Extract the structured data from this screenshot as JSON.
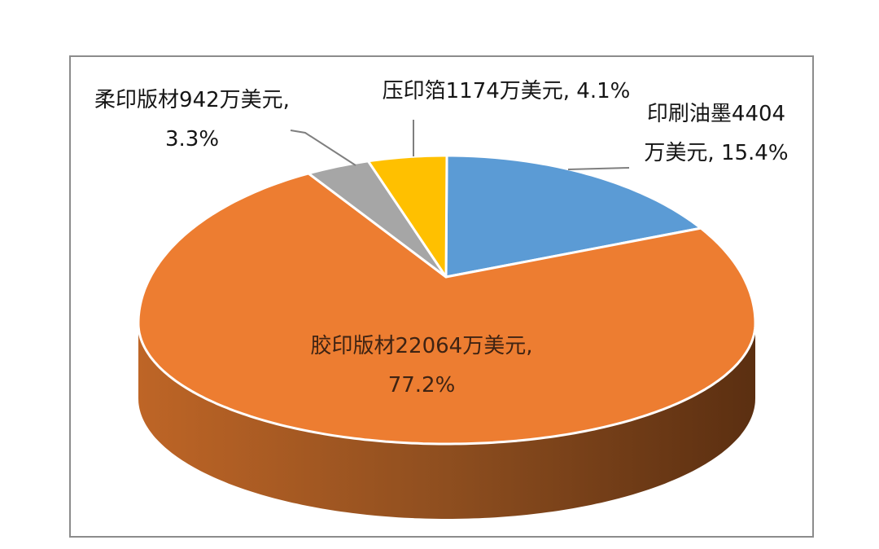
{
  "chart_data": {
    "type": "pie",
    "style": "3d",
    "unit": "万美元",
    "direction": "clockwise",
    "start_angle_deg": 0,
    "slices": [
      {
        "key": "ink",
        "label": "印刷油墨",
        "value": 4404,
        "pct": 15.4,
        "color": "#5B9BD5"
      },
      {
        "key": "offset",
        "label": "胶印版材",
        "value": 22064,
        "pct": 77.2,
        "color": "#ED7D31"
      },
      {
        "key": "flexo",
        "label": "柔印版材",
        "value": 942,
        "pct": 3.3,
        "color": "#A6A6A6"
      },
      {
        "key": "foil",
        "label": "压印箔",
        "value": 1174,
        "pct": 4.1,
        "color": "#FFC000"
      }
    ],
    "labels": {
      "flexo": {
        "line1": "柔印版材942万美元,",
        "line2": "3.3%"
      },
      "foil": {
        "line1": "压印箔1174万美元, 4.1%"
      },
      "ink": {
        "line1": "印刷油墨4404",
        "line2": "万美元, 15.4%"
      },
      "offset": {
        "line1": "胶印版材22064万美元,",
        "line2": "77.2%"
      }
    },
    "colors": {
      "side_gradient": [
        "#BE6526",
        "#8E4E1F",
        "#5B2F11"
      ],
      "leader_line": "#7F7F7F",
      "slice_border": "#ffffff",
      "label_text": "#151515",
      "inside_label_text": "#3E2313",
      "frame_border": "#8c8c8c"
    },
    "legend": "none",
    "grid": "off"
  }
}
